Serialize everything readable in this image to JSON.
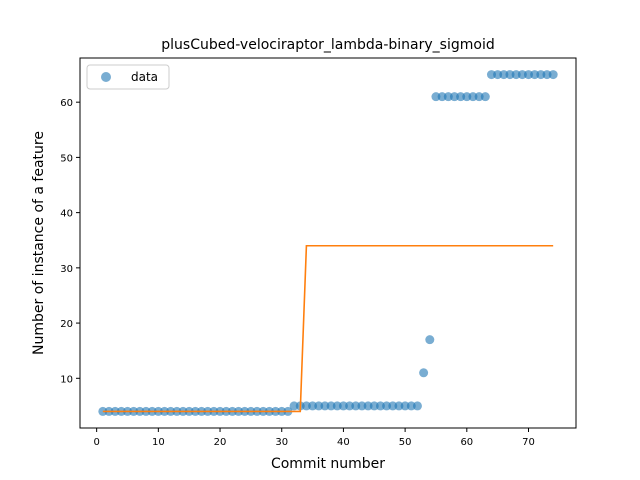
{
  "chart_data": {
    "type": "scatter",
    "title": "plusCubed-velociraptor_lambda-binary_sigmoid",
    "xlabel": "Commit number",
    "ylabel": "Number of instance of a feature",
    "xlim": [
      -2.7,
      77.7
    ],
    "ylim": [
      1.0,
      68.0
    ],
    "xticks": [
      0,
      10,
      20,
      30,
      40,
      50,
      60,
      70
    ],
    "yticks": [
      10,
      20,
      30,
      40,
      50,
      60
    ],
    "grid": false,
    "legend": {
      "placement": "top-left",
      "entries": [
        "data"
      ]
    },
    "colors": {
      "data": "#1f77b4",
      "fit": "#ff7f0e"
    },
    "series": [
      {
        "name": "data",
        "kind": "scatter",
        "x": [
          1,
          2,
          3,
          4,
          5,
          6,
          7,
          8,
          9,
          10,
          11,
          12,
          13,
          14,
          15,
          16,
          17,
          18,
          19,
          20,
          21,
          22,
          23,
          24,
          25,
          26,
          27,
          28,
          29,
          30,
          31,
          32,
          33,
          34,
          35,
          36,
          37,
          38,
          39,
          40,
          41,
          42,
          43,
          44,
          45,
          46,
          47,
          48,
          49,
          50,
          51,
          52,
          53,
          54,
          55,
          56,
          57,
          58,
          59,
          60,
          61,
          62,
          63,
          64,
          65,
          66,
          67,
          68,
          69,
          70,
          71,
          72,
          73,
          74
        ],
        "y": [
          4,
          4,
          4,
          4,
          4,
          4,
          4,
          4,
          4,
          4,
          4,
          4,
          4,
          4,
          4,
          4,
          4,
          4,
          4,
          4,
          4,
          4,
          4,
          4,
          4,
          4,
          4,
          4,
          4,
          4,
          4,
          5,
          5,
          5,
          5,
          5,
          5,
          5,
          5,
          5,
          5,
          5,
          5,
          5,
          5,
          5,
          5,
          5,
          5,
          5,
          5,
          5,
          11,
          17,
          61,
          61,
          61,
          61,
          61,
          61,
          61,
          61,
          61,
          65,
          65,
          65,
          65,
          65,
          65,
          65,
          65,
          65,
          65,
          65
        ]
      },
      {
        "kind": "line",
        "x": [
          1,
          33,
          34,
          74
        ],
        "y": [
          4,
          4,
          34,
          34
        ]
      }
    ]
  }
}
